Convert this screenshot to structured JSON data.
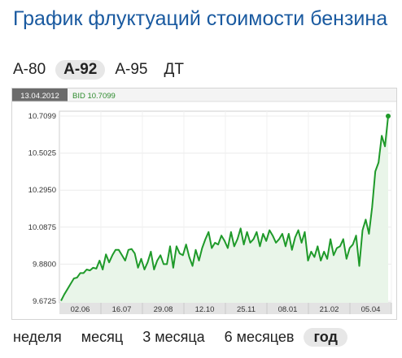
{
  "title": "График флуктуаций стоимости бензина",
  "fuel_tabs": [
    {
      "label": "А-80",
      "active": false
    },
    {
      "label": "А-92",
      "active": true
    },
    {
      "label": "А-95",
      "active": false
    },
    {
      "label": "ДТ",
      "active": false
    }
  ],
  "period_tabs": [
    {
      "label": "неделя",
      "active": false
    },
    {
      "label": "месяц",
      "active": false
    },
    {
      "label": "3 месяца",
      "active": false
    },
    {
      "label": "6 месяцев",
      "active": false
    },
    {
      "label": "год",
      "active": true
    }
  ],
  "tooltip": {
    "date": "13.04.2012",
    "bid_text": "BID 10.7099"
  },
  "colors": {
    "line": "#1f9a2a",
    "fill": "#e9f5e9",
    "title": "#1a5aa0",
    "axis_band": "#e3e3e3"
  },
  "chart_data": {
    "type": "area",
    "title": "",
    "xlabel": "",
    "ylabel": "",
    "ylim": [
      9.6725,
      10.7099
    ],
    "y_ticks": [
      "9.6725",
      "9.8800",
      "10.0875",
      "10.2950",
      "10.5025",
      "10.7099"
    ],
    "x_ticks": [
      "02.06",
      "16.07",
      "29.08",
      "12.10",
      "25.11",
      "08.01",
      "21.02",
      "05.04"
    ],
    "grid": true,
    "series": [
      {
        "values": [
          9.675,
          9.71,
          9.74,
          9.77,
          9.8,
          9.805,
          9.83,
          9.83,
          9.85,
          9.845,
          9.86,
          9.855,
          9.9,
          9.85,
          9.935,
          9.89,
          9.93,
          9.96,
          9.96,
          9.93,
          9.9,
          9.96,
          9.965,
          9.94,
          9.86,
          9.91,
          9.85,
          9.89,
          9.95,
          9.85,
          9.9,
          9.93,
          9.88,
          9.88,
          9.98,
          9.86,
          9.98,
          9.94,
          9.93,
          9.99,
          9.92,
          9.87,
          9.96,
          9.9,
          9.97,
          10.02,
          10.06,
          9.97,
          10.0,
          9.99,
          10.04,
          10.01,
          9.97,
          10.06,
          9.98,
          10.02,
          10.08,
          9.99,
          10.06,
          10.0,
          10.02,
          10.06,
          9.98,
          10.05,
          10.01,
          10.07,
          10.04,
          10.0,
          10.02,
          10.05,
          9.98,
          10.05,
          9.96,
          10.03,
          10.07,
          10.0,
          10.06,
          9.9,
          9.95,
          9.92,
          9.98,
          9.9,
          9.95,
          9.91,
          10.02,
          9.93,
          9.97,
          9.98,
          10.02,
          9.91,
          9.97,
          9.99,
          10.04,
          9.87,
          10.07,
          10.13,
          10.05,
          10.2,
          10.4,
          10.45,
          10.6,
          10.54,
          10.71
        ]
      }
    ]
  }
}
